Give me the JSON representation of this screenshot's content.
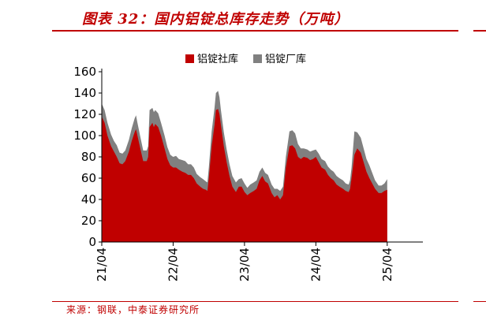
{
  "header": {
    "title": "图表 32：国内铝锭总库存走势（万吨）"
  },
  "footer": {
    "source": "来源：钢联，中泰证券研究所"
  },
  "chart_data": {
    "type": "area",
    "stacked": true,
    "title": "图表 32：国内铝锭总库存走势（万吨）",
    "xlabel": "",
    "ylabel": "",
    "ylim": [
      0,
      160
    ],
    "yticks": [
      0,
      20,
      40,
      60,
      80,
      100,
      120,
      140,
      160
    ],
    "xlim": [
      2021.25,
      2025.75
    ],
    "xticks": [
      {
        "value": 2021.25,
        "label": "21/04"
      },
      {
        "value": 2022.25,
        "label": "22/04"
      },
      {
        "value": 2023.25,
        "label": "23/04"
      },
      {
        "value": 2024.25,
        "label": "24/04"
      },
      {
        "value": 2025.25,
        "label": "25/04"
      }
    ],
    "legend_position": "top",
    "grid": false,
    "series": [
      {
        "name": "铝锭社库",
        "color": "#c00000",
        "points": [
          [
            2021.25,
            118
          ],
          [
            2021.29,
            112
          ],
          [
            2021.33,
            100
          ],
          [
            2021.38,
            90
          ],
          [
            2021.42,
            85
          ],
          [
            2021.46,
            80
          ],
          [
            2021.5,
            74
          ],
          [
            2021.54,
            73
          ],
          [
            2021.58,
            76
          ],
          [
            2021.63,
            85
          ],
          [
            2021.67,
            95
          ],
          [
            2021.71,
            103
          ],
          [
            2021.73,
            106
          ],
          [
            2021.75,
            100
          ],
          [
            2021.79,
            88
          ],
          [
            2021.83,
            76
          ],
          [
            2021.88,
            76
          ],
          [
            2021.9,
            80
          ],
          [
            2021.92,
            108
          ],
          [
            2021.96,
            112
          ],
          [
            2021.98,
            108
          ],
          [
            2022.0,
            111
          ],
          [
            2022.04,
            108
          ],
          [
            2022.08,
            100
          ],
          [
            2022.13,
            88
          ],
          [
            2022.17,
            78
          ],
          [
            2022.21,
            72
          ],
          [
            2022.25,
            70
          ],
          [
            2022.29,
            70
          ],
          [
            2022.33,
            68
          ],
          [
            2022.38,
            66
          ],
          [
            2022.42,
            65
          ],
          [
            2022.46,
            63
          ],
          [
            2022.5,
            63
          ],
          [
            2022.54,
            60
          ],
          [
            2022.58,
            55
          ],
          [
            2022.63,
            52
          ],
          [
            2022.67,
            50
          ],
          [
            2022.71,
            49
          ],
          [
            2022.73,
            48
          ],
          [
            2022.75,
            60
          ],
          [
            2022.79,
            90
          ],
          [
            2022.83,
            110
          ],
          [
            2022.85,
            124
          ],
          [
            2022.88,
            125
          ],
          [
            2022.9,
            120
          ],
          [
            2022.92,
            110
          ],
          [
            2022.96,
            90
          ],
          [
            2023.0,
            75
          ],
          [
            2023.04,
            62
          ],
          [
            2023.08,
            52
          ],
          [
            2023.13,
            47
          ],
          [
            2023.17,
            52
          ],
          [
            2023.21,
            52
          ],
          [
            2023.25,
            47
          ],
          [
            2023.29,
            44
          ],
          [
            2023.33,
            46
          ],
          [
            2023.38,
            48
          ],
          [
            2023.42,
            50
          ],
          [
            2023.46,
            58
          ],
          [
            2023.5,
            62
          ],
          [
            2023.54,
            57
          ],
          [
            2023.58,
            55
          ],
          [
            2023.63,
            46
          ],
          [
            2023.67,
            42
          ],
          [
            2023.71,
            44
          ],
          [
            2023.75,
            40
          ],
          [
            2023.79,
            44
          ],
          [
            2023.83,
            70
          ],
          [
            2023.88,
            90
          ],
          [
            2023.92,
            91
          ],
          [
            2023.96,
            88
          ],
          [
            2024.0,
            80
          ],
          [
            2024.04,
            78
          ],
          [
            2024.08,
            80
          ],
          [
            2024.13,
            79
          ],
          [
            2024.17,
            77
          ],
          [
            2024.21,
            78
          ],
          [
            2024.25,
            80
          ],
          [
            2024.29,
            75
          ],
          [
            2024.33,
            70
          ],
          [
            2024.38,
            68
          ],
          [
            2024.42,
            63
          ],
          [
            2024.46,
            60
          ],
          [
            2024.5,
            58
          ],
          [
            2024.54,
            54
          ],
          [
            2024.58,
            52
          ],
          [
            2024.63,
            50
          ],
          [
            2024.67,
            48
          ],
          [
            2024.71,
            47
          ],
          [
            2024.73,
            50
          ],
          [
            2024.75,
            60
          ],
          [
            2024.79,
            82
          ],
          [
            2024.83,
            88
          ],
          [
            2024.88,
            84
          ],
          [
            2024.92,
            75
          ],
          [
            2024.96,
            66
          ],
          [
            2025.0,
            60
          ],
          [
            2025.04,
            55
          ],
          [
            2025.08,
            50
          ],
          [
            2025.13,
            46
          ],
          [
            2025.17,
            46
          ],
          [
            2025.21,
            48
          ],
          [
            2025.25,
            49
          ]
        ]
      },
      {
        "name": "铝锭厂库",
        "color": "#808080",
        "points": [
          [
            2021.25,
            12
          ],
          [
            2021.29,
            12
          ],
          [
            2021.33,
            12
          ],
          [
            2021.38,
            11
          ],
          [
            2021.42,
            10
          ],
          [
            2021.46,
            11
          ],
          [
            2021.5,
            10
          ],
          [
            2021.54,
            10
          ],
          [
            2021.58,
            10
          ],
          [
            2021.63,
            11
          ],
          [
            2021.67,
            12
          ],
          [
            2021.71,
            13
          ],
          [
            2021.73,
            13
          ],
          [
            2021.75,
            12
          ],
          [
            2021.79,
            11
          ],
          [
            2021.83,
            10
          ],
          [
            2021.88,
            10
          ],
          [
            2021.9,
            10
          ],
          [
            2021.92,
            16
          ],
          [
            2021.96,
            14
          ],
          [
            2021.98,
            14
          ],
          [
            2022.0,
            13
          ],
          [
            2022.04,
            13
          ],
          [
            2022.08,
            12
          ],
          [
            2022.13,
            12
          ],
          [
            2022.17,
            11
          ],
          [
            2022.21,
            10
          ],
          [
            2022.25,
            10
          ],
          [
            2022.29,
            11
          ],
          [
            2022.33,
            10
          ],
          [
            2022.38,
            11
          ],
          [
            2022.42,
            11
          ],
          [
            2022.46,
            10
          ],
          [
            2022.5,
            10
          ],
          [
            2022.54,
            10
          ],
          [
            2022.58,
            9
          ],
          [
            2022.63,
            9
          ],
          [
            2022.67,
            9
          ],
          [
            2022.71,
            8
          ],
          [
            2022.73,
            8
          ],
          [
            2022.75,
            10
          ],
          [
            2022.79,
            14
          ],
          [
            2022.83,
            16
          ],
          [
            2022.85,
            16
          ],
          [
            2022.88,
            17
          ],
          [
            2022.9,
            16
          ],
          [
            2022.92,
            14
          ],
          [
            2022.96,
            13
          ],
          [
            2023.0,
            12
          ],
          [
            2023.04,
            11
          ],
          [
            2023.08,
            10
          ],
          [
            2023.13,
            9
          ],
          [
            2023.17,
            7
          ],
          [
            2023.21,
            8
          ],
          [
            2023.25,
            8
          ],
          [
            2023.29,
            7
          ],
          [
            2023.33,
            8
          ],
          [
            2023.38,
            8
          ],
          [
            2023.42,
            8
          ],
          [
            2023.46,
            8
          ],
          [
            2023.5,
            8
          ],
          [
            2023.54,
            8
          ],
          [
            2023.58,
            8
          ],
          [
            2023.63,
            8
          ],
          [
            2023.67,
            8
          ],
          [
            2023.71,
            6
          ],
          [
            2023.75,
            8
          ],
          [
            2023.79,
            8
          ],
          [
            2023.83,
            10
          ],
          [
            2023.88,
            14
          ],
          [
            2023.92,
            14
          ],
          [
            2023.96,
            14
          ],
          [
            2024.0,
            12
          ],
          [
            2024.04,
            10
          ],
          [
            2024.08,
            8
          ],
          [
            2024.13,
            8
          ],
          [
            2024.17,
            8
          ],
          [
            2024.21,
            8
          ],
          [
            2024.25,
            7
          ],
          [
            2024.29,
            8
          ],
          [
            2024.33,
            8
          ],
          [
            2024.38,
            8
          ],
          [
            2024.42,
            8
          ],
          [
            2024.46,
            8
          ],
          [
            2024.5,
            8
          ],
          [
            2024.54,
            8
          ],
          [
            2024.58,
            8
          ],
          [
            2024.63,
            8
          ],
          [
            2024.67,
            7
          ],
          [
            2024.71,
            7
          ],
          [
            2024.73,
            8
          ],
          [
            2024.75,
            10
          ],
          [
            2024.79,
            22
          ],
          [
            2024.83,
            15
          ],
          [
            2024.88,
            14
          ],
          [
            2024.92,
            13
          ],
          [
            2024.96,
            12
          ],
          [
            2025.0,
            12
          ],
          [
            2025.04,
            10
          ],
          [
            2025.08,
            8
          ],
          [
            2025.13,
            7
          ],
          [
            2025.17,
            7
          ],
          [
            2025.21,
            7
          ],
          [
            2025.25,
            10
          ]
        ]
      }
    ]
  }
}
